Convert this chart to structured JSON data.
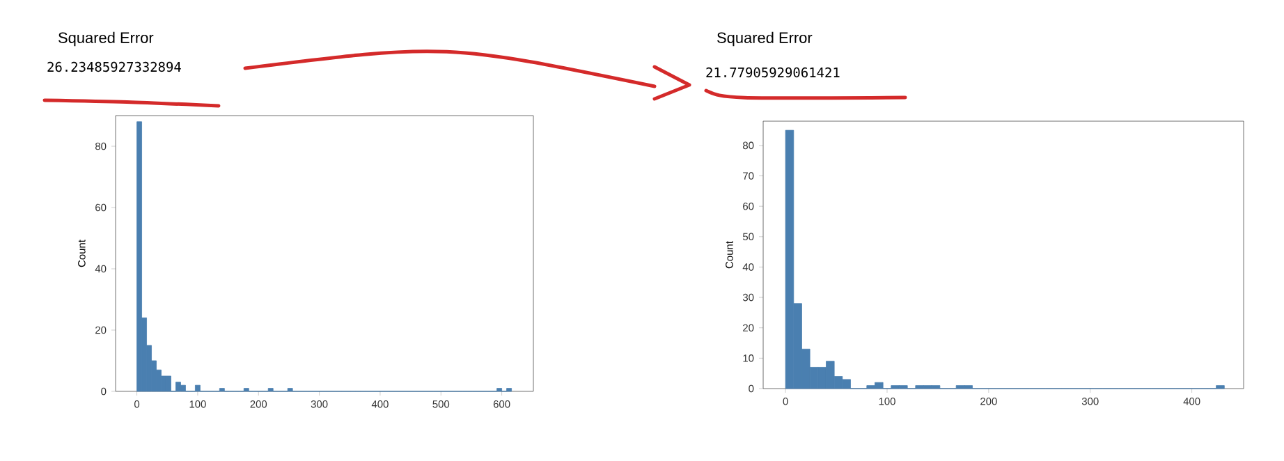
{
  "chart_data": [
    {
      "type": "histogram",
      "title": "Squared Error",
      "subtitle": "26.23485927332894",
      "ylabel": "Count",
      "color": "#4a7fb0",
      "bins": [
        0,
        8,
        16,
        24,
        32,
        40,
        48,
        56,
        64,
        72,
        80,
        88,
        96,
        104,
        112,
        120,
        128,
        136,
        144,
        152,
        160,
        168,
        176,
        184,
        192,
        200,
        208,
        216,
        224,
        232,
        240,
        248,
        256,
        264,
        272,
        280,
        288,
        296,
        304,
        312,
        320,
        328,
        336,
        344,
        352,
        360,
        368,
        376,
        384,
        392,
        400,
        408,
        416,
        424,
        432,
        440,
        448,
        456,
        464,
        472,
        480,
        488,
        496,
        504,
        512,
        520,
        528,
        536,
        544,
        552,
        560,
        568,
        576,
        584,
        592,
        600,
        608,
        616
      ],
      "values": [
        88,
        24,
        15,
        10,
        7,
        5,
        5,
        0,
        3,
        2,
        0,
        0,
        2,
        0,
        0,
        0,
        0,
        1,
        0,
        0,
        0,
        0,
        1,
        0,
        0,
        0,
        0,
        1,
        0,
        0,
        0,
        1,
        0,
        0,
        0,
        0,
        0,
        0,
        0,
        0,
        0,
        0,
        0,
        0,
        0,
        0,
        0,
        0,
        0,
        0,
        0,
        0,
        0,
        0,
        0,
        0,
        0,
        0,
        0,
        0,
        0,
        0,
        0,
        0,
        0,
        0,
        0,
        0,
        0,
        0,
        0,
        0,
        0,
        0,
        1,
        0,
        1
      ],
      "xlim": [
        -35,
        652
      ],
      "ylim": [
        0,
        90
      ],
      "xticks": [
        0,
        100,
        200,
        300,
        400,
        500,
        600
      ],
      "yticks": [
        0,
        20,
        40,
        60,
        80
      ]
    },
    {
      "type": "histogram",
      "title": "Squared Error",
      "subtitle": "21.77905929061421",
      "ylabel": "Count",
      "color": "#4a7fb0",
      "bins": [
        0,
        8,
        16,
        24,
        32,
        40,
        48,
        56,
        64,
        72,
        80,
        88,
        96,
        104,
        112,
        120,
        128,
        136,
        144,
        152,
        160,
        168,
        176,
        184,
        192,
        200,
        208,
        216,
        224,
        232,
        240,
        248,
        256,
        264,
        272,
        280,
        288,
        296,
        304,
        312,
        320,
        328,
        336,
        344,
        352,
        360,
        368,
        376,
        384,
        392,
        400,
        408,
        416,
        424,
        432
      ],
      "values": [
        85,
        28,
        13,
        7,
        7,
        9,
        4,
        3,
        0,
        0,
        1,
        2,
        0,
        1,
        1,
        0,
        1,
        1,
        1,
        0,
        0,
        1,
        1,
        0,
        0,
        0,
        0,
        0,
        0,
        0,
        0,
        0,
        0,
        0,
        0,
        0,
        0,
        0,
        0,
        0,
        0,
        0,
        0,
        0,
        0,
        0,
        0,
        0,
        0,
        0,
        0,
        0,
        0,
        1
      ],
      "xlim": [
        -22,
        451
      ],
      "ylim": [
        0,
        88
      ],
      "xticks": [
        0,
        100,
        200,
        300,
        400
      ],
      "yticks": [
        0,
        10,
        20,
        30,
        40,
        50,
        60,
        70,
        80
      ]
    }
  ]
}
